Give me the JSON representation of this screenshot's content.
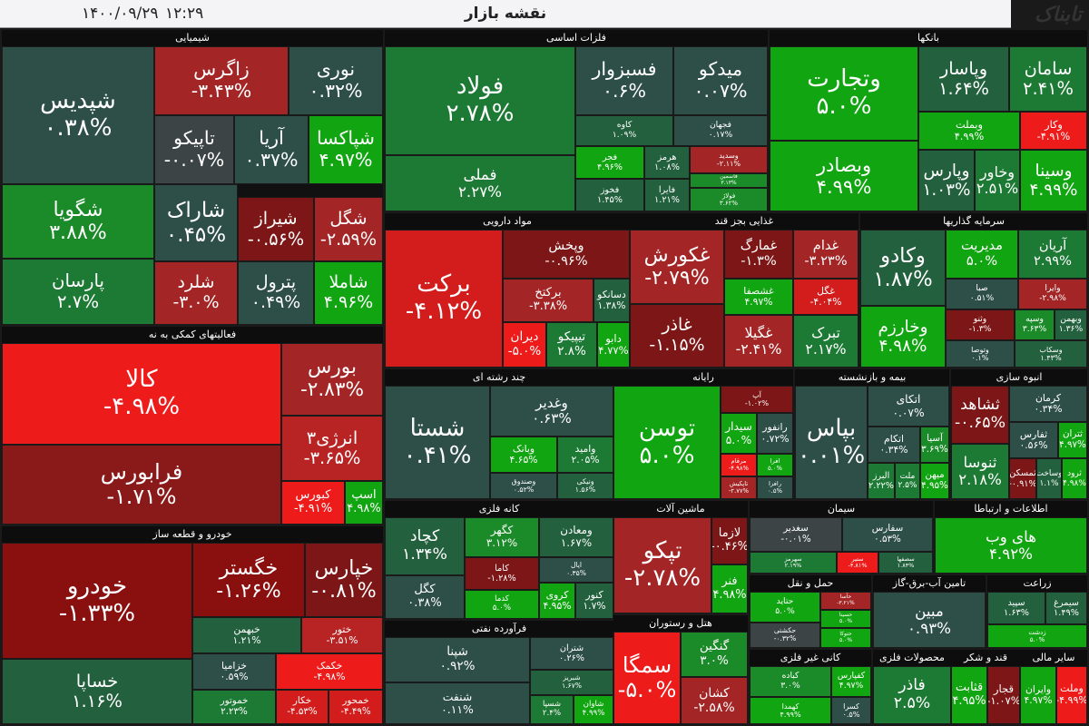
{
  "header": {
    "title": "نقشه بازار",
    "time": "۱۲:۲۹",
    "date": "۱۴۰۰/۰۹/۲۹",
    "logo": "تابناک"
  },
  "sectors": [
    {
      "name": "شیمیایی",
      "tiles": [
        {
          "name": "شپدیس",
          "change": "۰.۳۸%",
          "color": "#2e4f48"
        },
        {
          "name": "زاگرس",
          "change": "-۳.۴۳%",
          "color": "#a32525"
        },
        {
          "name": "نوری",
          "change": "۰.۳۲%",
          "color": "#2e4f48"
        },
        {
          "name": "تاپیکو",
          "change": "-۰.۰۷%",
          "color": "#3d4446"
        },
        {
          "name": "آریا",
          "change": "۰.۳۷%",
          "color": "#2e4f48"
        },
        {
          "name": "شپاکسا",
          "change": "۴.۹۷%",
          "color": "#12a512"
        },
        {
          "name": "شگویا",
          "change": "۳.۸۸%",
          "color": "#1b8a28"
        },
        {
          "name": "پارسان",
          "change": "۲.۷%",
          "color": "#1d7a35"
        },
        {
          "name": "شاراک",
          "change": "۰.۴۵%",
          "color": "#2e4f48"
        },
        {
          "name": "شیراز",
          "change": "-۰.۵۶%",
          "color": "#7d1616"
        },
        {
          "name": "شگل",
          "change": "-۲.۵۹%",
          "color": "#a32525"
        },
        {
          "name": "شلرد",
          "change": "-۳.۰%",
          "color": "#a32525"
        },
        {
          "name": "پترول",
          "change": "۰.۴۹%",
          "color": "#2e4f48"
        },
        {
          "name": "شاملا",
          "change": "۴.۹۶%",
          "color": "#12a512"
        }
      ]
    },
    {
      "name": "فلزات اساسی",
      "tiles": [
        {
          "name": "فولاد",
          "change": "۲.۷۸%",
          "color": "#1d7a35"
        },
        {
          "name": "فملی",
          "change": "۲.۲۷%",
          "color": "#1d7a35"
        },
        {
          "name": "فسبزوار",
          "change": "۰.۶%",
          "color": "#2e4f48"
        },
        {
          "name": "میدکو",
          "change": "۰.۰۷%",
          "color": "#2e4f48"
        },
        {
          "name": "کاوه",
          "change": "۱.۰۹%",
          "color": "#22603e"
        },
        {
          "name": "فجهان",
          "change": "۰.۱۷%",
          "color": "#2e4f48"
        },
        {
          "name": "فجر",
          "change": "۴.۹۶%",
          "color": "#12a512"
        },
        {
          "name": "هرمز",
          "change": "۱.۰۸%",
          "color": "#22603e"
        },
        {
          "name": "وسدید",
          "change": "-۲.۱۱%",
          "color": "#a32525"
        },
        {
          "name": "فخوز",
          "change": "۱.۴۵%",
          "color": "#22603e"
        },
        {
          "name": "فایرا",
          "change": "۱.۲۱%",
          "color": "#22603e"
        },
        {
          "name": "فاسمین",
          "change": "۳.۱۳%",
          "color": "#1b8a28"
        },
        {
          "name": "فولاژ",
          "change": "۳.۶۲%",
          "color": "#1b8a28"
        }
      ]
    },
    {
      "name": "بانکها",
      "tiles": [
        {
          "name": "وتجارت",
          "change": "۵.۰%",
          "color": "#12a512"
        },
        {
          "name": "وبصادر",
          "change": "۴.۹۹%",
          "color": "#12a512"
        },
        {
          "name": "وپاسار",
          "change": "۱.۶۴%",
          "color": "#22603e"
        },
        {
          "name": "سامان",
          "change": "۲.۴۱%",
          "color": "#1d7a35"
        },
        {
          "name": "وبملت",
          "change": "۴.۹۹%",
          "color": "#12a512"
        },
        {
          "name": "وکار",
          "change": "-۴.۹۱%",
          "color": "#ee1b1b"
        },
        {
          "name": "وپارس",
          "change": "۱.۰۳%",
          "color": "#22603e"
        },
        {
          "name": "وخاور",
          "change": "۲.۵۱%",
          "color": "#1d7a35"
        },
        {
          "name": "وسینا",
          "change": "۴.۹۹%",
          "color": "#12a512"
        }
      ]
    },
    {
      "name": "فعالیتهای کمکی به نه",
      "tiles": [
        {
          "name": "کالا",
          "change": "-۴.۹۸%",
          "color": "#ee1b1b"
        },
        {
          "name": "فرابورس",
          "change": "-۱.۷۱%",
          "color": "#8a1a1a"
        },
        {
          "name": "بورس",
          "change": "-۲.۸۳%",
          "color": "#a32525"
        },
        {
          "name": "انرژی۳",
          "change": "-۳.۶۵%",
          "color": "#b82424"
        },
        {
          "name": "کبورس",
          "change": "-۴.۹۱%",
          "color": "#ee1b1b"
        },
        {
          "name": "اسپ",
          "change": "۴.۹۸%",
          "color": "#12a512"
        }
      ]
    },
    {
      "name": "مواد دارویی",
      "tiles": [
        {
          "name": "برکت",
          "change": "-۴.۱۲%",
          "color": "#d31c1c"
        },
        {
          "name": "وپخش",
          "change": "-۰.۹۶%",
          "color": "#7d1616"
        },
        {
          "name": "برکتخ",
          "change": "-۳.۳۸%",
          "color": "#a32525"
        },
        {
          "name": "دسانکو",
          "change": "۱.۳۸%",
          "color": "#22603e"
        },
        {
          "name": "دیران",
          "change": "-۵.۰%",
          "color": "#ee1b1b"
        },
        {
          "name": "تیپیکو",
          "change": "۲.۸%",
          "color": "#1d7a35"
        },
        {
          "name": "دابو",
          "change": "۴.۷۷%",
          "color": "#12a512"
        }
      ]
    },
    {
      "name": "غذایی بجز قند",
      "tiles": [
        {
          "name": "غکورش",
          "change": "-۲.۷۹%",
          "color": "#a32525"
        },
        {
          "name": "غمارگ",
          "change": "-۱.۳%",
          "color": "#7d1616"
        },
        {
          "name": "غدام",
          "change": "-۳.۲۳%",
          "color": "#a32525"
        },
        {
          "name": "غشصفا",
          "change": "۴.۹۷%",
          "color": "#12a512"
        },
        {
          "name": "غگل",
          "change": "-۴.۰۴%",
          "color": "#d31c1c"
        },
        {
          "name": "غاذر",
          "change": "-۱.۱۵%",
          "color": "#7d1616"
        },
        {
          "name": "غگیلا",
          "change": "-۲.۴۱%",
          "color": "#a32525"
        },
        {
          "name": "تبرک",
          "change": "۲.۱۷%",
          "color": "#1d7a35"
        }
      ]
    },
    {
      "name": "سرمایه گذاریها",
      "tiles": [
        {
          "name": "وکادو",
          "change": "۱.۸۷%",
          "color": "#22603e"
        },
        {
          "name": "وخارزم",
          "change": "۴.۹۸%",
          "color": "#12a512"
        },
        {
          "name": "مدیریت",
          "change": "۵.۰%",
          "color": "#12a512"
        },
        {
          "name": "آریان",
          "change": "۲.۹۹%",
          "color": "#1d7a35"
        },
        {
          "name": "صبا",
          "change": "۰.۵۱%",
          "color": "#2e4f48"
        },
        {
          "name": "وایرا",
          "change": "-۲.۹۸%",
          "color": "#a32525"
        },
        {
          "name": "وثنو",
          "change": "-۱.۳%",
          "color": "#7d1616"
        },
        {
          "name": "وسپه",
          "change": "۳.۶۳%",
          "color": "#1b8a28"
        },
        {
          "name": "وبهمن",
          "change": "۱.۳۶%",
          "color": "#22603e"
        },
        {
          "name": "وتوصا",
          "change": "۰.۱%",
          "color": "#2e4f48"
        },
        {
          "name": "وسکاب",
          "change": "۱.۴۳%",
          "color": "#22603e"
        }
      ]
    },
    {
      "name": "چند رشته ای",
      "tiles": [
        {
          "name": "شستا",
          "change": "۰.۴۱%",
          "color": "#2e4f48"
        },
        {
          "name": "وغدیر",
          "change": "۰.۶۳%",
          "color": "#2e4f48"
        },
        {
          "name": "وبانک",
          "change": "۴.۶۵%",
          "color": "#12a512"
        },
        {
          "name": "وامید",
          "change": "۲.۰۵%",
          "color": "#1d7a35"
        },
        {
          "name": "وصندوق",
          "change": "۰.۵۲%",
          "color": "#2e4f48"
        },
        {
          "name": "ونیکی",
          "change": "۱.۵۶%",
          "color": "#22603e"
        }
      ]
    },
    {
      "name": "رایانه",
      "tiles": [
        {
          "name": "توسن",
          "change": "۵.۰%",
          "color": "#12a512"
        },
        {
          "name": "آپ",
          "change": "-۱.۰۲%",
          "color": "#7d1616"
        },
        {
          "name": "سیدار",
          "change": "۵.۰%",
          "color": "#12a512"
        },
        {
          "name": "رانفور",
          "change": "۰.۷۲%",
          "color": "#2e4f48"
        },
        {
          "name": "مرقام",
          "change": "-۴.۹۸%",
          "color": "#ee1b1b"
        },
        {
          "name": "افرا",
          "change": "۵.۰%",
          "color": "#12a512"
        },
        {
          "name": "تاپکیش",
          "change": "-۲.۷۷%",
          "color": "#a32525"
        },
        {
          "name": "رافزا",
          "change": "۰.۵%",
          "color": "#2e4f48"
        }
      ]
    },
    {
      "name": "بیمه و بازنشسته",
      "tiles": [
        {
          "name": "بپاس",
          "change": "۰.۰۱%",
          "color": "#2e4f48"
        },
        {
          "name": "اتکای",
          "change": "۰.۰۷%",
          "color": "#2e4f48"
        },
        {
          "name": "اتکام",
          "change": "۰.۳۴%",
          "color": "#2e4f48"
        },
        {
          "name": "آسیا",
          "change": "۳.۶۹%",
          "color": "#1b8a28"
        },
        {
          "name": "البرز",
          "change": "۲.۲۲%",
          "color": "#1d7a35"
        },
        {
          "name": "ملت",
          "change": "۲.۵%",
          "color": "#1d7a35"
        },
        {
          "name": "میهن",
          "change": "۴.۹۵%",
          "color": "#12a512"
        }
      ]
    },
    {
      "name": "انبوه سازی",
      "tiles": [
        {
          "name": "ثشاهد",
          "change": "-۰.۶۵%",
          "color": "#7d1616"
        },
        {
          "name": "کرمان",
          "change": "۰.۳۴%",
          "color": "#2e4f48"
        },
        {
          "name": "ثفارس",
          "change": "۰.۵۶%",
          "color": "#2e4f48"
        },
        {
          "name": "ثتران",
          "change": "۴.۹۷%",
          "color": "#12a512"
        },
        {
          "name": "ثنوسا",
          "change": "۲.۱۸%",
          "color": "#1d7a35"
        },
        {
          "name": "ثمسکن",
          "change": "-۰.۹۱%",
          "color": "#7d1616"
        },
        {
          "name": "وساخت",
          "change": "۱.۱%",
          "color": "#22603e"
        },
        {
          "name": "ثرود",
          "change": "۴.۹۸%",
          "color": "#12a512"
        }
      ]
    },
    {
      "name": "خودرو  و قطعه ساز",
      "tiles": [
        {
          "name": "خودرو",
          "change": "-۱.۳۳%",
          "color": "#8a1010"
        },
        {
          "name": "خساپا",
          "change": "۱.۱۶%",
          "color": "#22603e"
        },
        {
          "name": "خگستر",
          "change": "-۱.۲۶%",
          "color": "#8a1010"
        },
        {
          "name": "خپارس",
          "change": "-۰.۸۱%",
          "color": "#7d1616"
        },
        {
          "name": "خبهمن",
          "change": "۱.۲۱%",
          "color": "#22603e"
        },
        {
          "name": "ختور",
          "change": "-۳.۵۱%",
          "color": "#b82424"
        },
        {
          "name": "خزامیا",
          "change": "۰.۵۹%",
          "color": "#2e4f48"
        },
        {
          "name": "خکمک",
          "change": "-۴.۹۸%",
          "color": "#ee1b1b"
        },
        {
          "name": "خموتور",
          "change": "۲.۲۳%",
          "color": "#1d7a35"
        },
        {
          "name": "خکار",
          "change": "-۴.۵۳%",
          "color": "#d31c1c"
        },
        {
          "name": "خمحور",
          "change": "-۴.۴۹%",
          "color": "#d31c1c"
        }
      ]
    },
    {
      "name": "کانه فلزی",
      "tiles": [
        {
          "name": "کچاد",
          "change": "۱.۳۴%",
          "color": "#22603e"
        },
        {
          "name": "کگل",
          "change": "۰.۳۸%",
          "color": "#2e4f48"
        },
        {
          "name": "کگهر",
          "change": "۳.۱۲%",
          "color": "#1b8a28"
        },
        {
          "name": "ومعادن",
          "change": "۱.۶۷%",
          "color": "#22603e"
        },
        {
          "name": "کاما",
          "change": "-۱.۲۸%",
          "color": "#7d1616"
        },
        {
          "name": "ایال",
          "change": "۰.۳۵%",
          "color": "#2e4f48"
        },
        {
          "name": "کدما",
          "change": "۵.۰%",
          "color": "#12a512"
        },
        {
          "name": "کروی",
          "change": "۴.۹۵%",
          "color": "#12a512"
        },
        {
          "name": "کنور",
          "change": "۱.۷%",
          "color": "#22603e"
        }
      ]
    },
    {
      "name": "فرآورده نفتی",
      "tiles": [
        {
          "name": "شپنا",
          "change": "۰.۹۲%",
          "color": "#2e4f48"
        },
        {
          "name": "شنفت",
          "change": "۰.۱۱%",
          "color": "#2e4f48"
        },
        {
          "name": "شتران",
          "change": "۰.۲۶%",
          "color": "#2e4f48"
        },
        {
          "name": "شبریز",
          "change": "۱.۶۷%",
          "color": "#22603e"
        },
        {
          "name": "شسپا",
          "change": "۲.۴%",
          "color": "#1d7a35"
        },
        {
          "name": "شاوان",
          "change": "۴.۹۹%",
          "color": "#12a512"
        }
      ]
    },
    {
      "name": "ماشین آلات",
      "tiles": [
        {
          "name": "تپکو",
          "change": "-۲.۷۸%",
          "color": "#a32525"
        },
        {
          "name": "لازما",
          "change": "-۰.۴۶%",
          "color": "#7d1616"
        },
        {
          "name": "فنر",
          "change": "۴.۹۸%",
          "color": "#12a512"
        }
      ]
    },
    {
      "name": "هتل و رستوران",
      "tiles": [
        {
          "name": "سمگا",
          "change": "-۵.۰%",
          "color": "#ee1b1b"
        },
        {
          "name": "گنگین",
          "change": "۳.۰%",
          "color": "#1b8a28"
        },
        {
          "name": "کشان",
          "change": "-۲.۵۸%",
          "color": "#a32525"
        }
      ]
    },
    {
      "name": "سیمان",
      "tiles": [
        {
          "name": "سغدیر",
          "change": "-۰.۰۱%",
          "color": "#3d4446"
        },
        {
          "name": "سفارس",
          "change": "۰.۵۳%",
          "color": "#2e4f48"
        },
        {
          "name": "سهرمز",
          "change": "۲.۱۹%",
          "color": "#1d7a35"
        },
        {
          "name": "ستیر",
          "change": "-۴.۸۱%",
          "color": "#ee1b1b"
        },
        {
          "name": "سصفها",
          "change": "۱.۸۴%",
          "color": "#22603e"
        }
      ]
    },
    {
      "name": "اطلاعات و ارتباطا",
      "tiles": [
        {
          "name": "های وب",
          "change": "۴.۹۲%",
          "color": "#12a512"
        }
      ]
    },
    {
      "name": "حمل و نقل",
      "tiles": [
        {
          "name": "حتاید",
          "change": "۵.۰%",
          "color": "#12a512"
        },
        {
          "name": "حکشتی",
          "change": "-۰.۳۲%",
          "color": "#3d4446"
        },
        {
          "name": "حآسا",
          "change": "-۳.۲۱%",
          "color": "#a32525"
        },
        {
          "name": "حسینا",
          "change": "۵.۰%",
          "color": "#12a512"
        },
        {
          "name": "حتوکا",
          "change": "۵.۰%",
          "color": "#12a512"
        }
      ]
    },
    {
      "name": "تامین آب-برق-گاز",
      "tiles": [
        {
          "name": "مبین",
          "change": "۰.۹۳%",
          "color": "#2e4f48"
        }
      ]
    },
    {
      "name": "زراعت",
      "tiles": [
        {
          "name": "سپید",
          "change": "۱.۶۳%",
          "color": "#22603e"
        },
        {
          "name": "سیمرغ",
          "change": "۱.۴۹%",
          "color": "#22603e"
        },
        {
          "name": "زدشت",
          "change": "۵.۰%",
          "color": "#12a512"
        }
      ]
    },
    {
      "name": "کانی غیر فلزی",
      "tiles": [
        {
          "name": "کباده",
          "change": "۳.۰%",
          "color": "#1b8a28"
        },
        {
          "name": "کهمدا",
          "change": "۴.۹۹%",
          "color": "#12a512"
        },
        {
          "name": "کفپارس",
          "change": "۴.۹۷%",
          "color": "#12a512"
        },
        {
          "name": "کسرا",
          "change": "۰.۵%",
          "color": "#2e4f48"
        }
      ]
    },
    {
      "name": "محصولات فلزی",
      "tiles": [
        {
          "name": "فاذر",
          "change": "۲.۵%",
          "color": "#1d7a35"
        }
      ]
    },
    {
      "name": "قند و شکر",
      "tiles": [
        {
          "name": "قثابت",
          "change": "۴.۹۵%",
          "color": "#12a512"
        },
        {
          "name": "قجار",
          "change": "-۱.۰۷%",
          "color": "#7d1616"
        }
      ]
    },
    {
      "name": "سایر مالی",
      "tiles": [
        {
          "name": "وایران",
          "change": "۴.۹۷%",
          "color": "#12a512"
        },
        {
          "name": "وملت",
          "change": "-۴.۹۹%",
          "color": "#ee1b1b"
        }
      ]
    }
  ]
}
